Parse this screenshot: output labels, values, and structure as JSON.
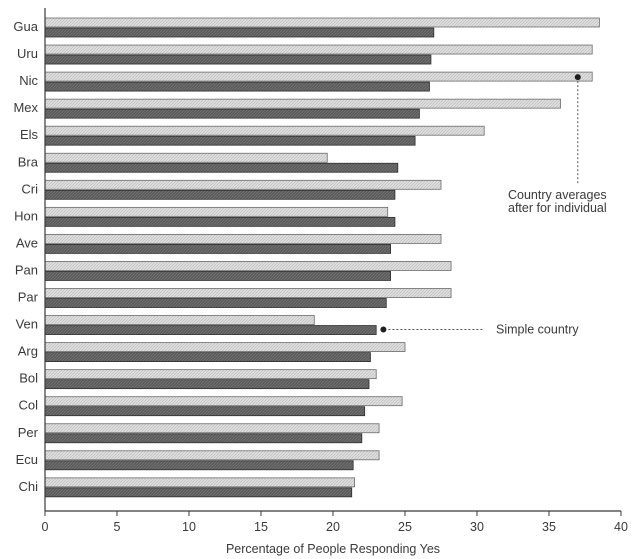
{
  "chart_data": {
    "type": "bar",
    "orientation": "horizontal",
    "categories": [
      "Gua",
      "Uru",
      "Nic",
      "Mex",
      "Els",
      "Bra",
      "Cri",
      "Hon",
      "Ave",
      "Pan",
      "Par",
      "Ven",
      "Arg",
      "Bol",
      "Col",
      "Per",
      "Ecu",
      "Chi"
    ],
    "series": [
      {
        "color": "#d9d9d9",
        "values": [
          38.5,
          38.0,
          38.0,
          35.8,
          30.5,
          19.6,
          27.5,
          23.8,
          27.5,
          28.2,
          28.2,
          18.7,
          25.0,
          23.0,
          24.8,
          23.2,
          23.2,
          21.5
        ]
      },
      {
        "color": "#5a5a5a",
        "values": [
          27.0,
          26.8,
          26.7,
          26.0,
          25.7,
          24.5,
          24.3,
          24.3,
          24.0,
          24.0,
          23.7,
          23.0,
          22.6,
          22.5,
          22.2,
          22.0,
          21.4,
          21.3
        ]
      }
    ],
    "xlabel": "Percentage of People Responding Yes",
    "ylabel": "",
    "xlim": [
      0,
      40
    ],
    "xticks": [
      0,
      5,
      10,
      15,
      20,
      25,
      30,
      35,
      40
    ],
    "grid": false,
    "annotations": [
      {
        "lines": [
          "Country averages",
          "after for individual"
        ],
        "category": "Nic",
        "value": 37.0
      },
      {
        "lines": [
          "Simple country"
        ],
        "category": "Ven",
        "value": 23.5
      }
    ]
  }
}
